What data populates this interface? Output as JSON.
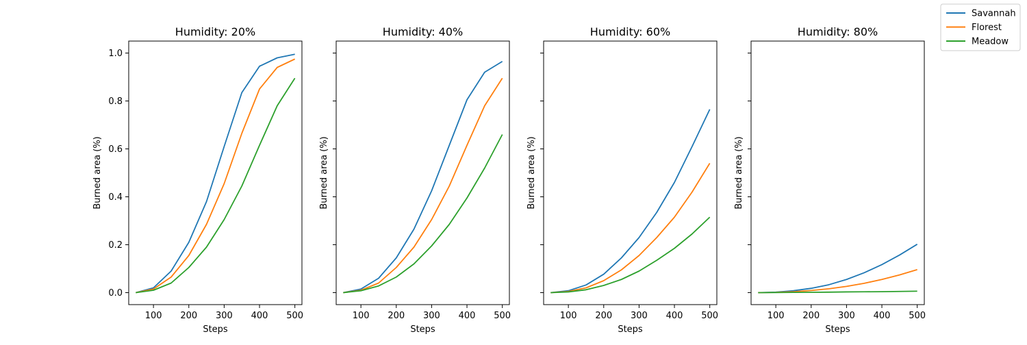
{
  "chart_data": {
    "type": "line",
    "layout": "1x4 subplots, shared y-axis",
    "legend": {
      "placement": "outside top-right",
      "entries": [
        "Savannah",
        "Florest",
        "Meadow"
      ]
    },
    "colors": {
      "Savannah": "#1f77b4",
      "Florest": "#ff7f0e",
      "Meadow": "#2ca02c"
    },
    "grid": false,
    "xlim": [
      30,
      520
    ],
    "ylim": [
      -0.05,
      1.05
    ],
    "x_ticks": [
      100,
      200,
      300,
      400,
      500
    ],
    "y_ticks": [
      0.0,
      0.2,
      0.4,
      0.6,
      0.8,
      1.0
    ],
    "y_tick_labels": [
      "0.0",
      "0.2",
      "0.4",
      "0.6",
      "0.8",
      "1.0"
    ],
    "x": [
      50,
      100,
      150,
      200,
      250,
      300,
      350,
      400,
      450,
      500
    ],
    "panels": [
      {
        "title": "Humidity: 20%",
        "xlabel": "Steps",
        "ylabel": "Burned area (%)",
        "series": [
          {
            "name": "Savannah",
            "values": [
              0.0,
              0.02,
              0.09,
              0.21,
              0.38,
              0.61,
              0.835,
              0.945,
              0.98,
              0.995
            ]
          },
          {
            "name": "Florest",
            "values": [
              0.0,
              0.015,
              0.065,
              0.155,
              0.285,
              0.455,
              0.665,
              0.85,
              0.94,
              0.975
            ]
          },
          {
            "name": "Meadow",
            "values": [
              0.0,
              0.01,
              0.04,
              0.105,
              0.19,
              0.305,
              0.445,
              0.615,
              0.78,
              0.895
            ]
          }
        ]
      },
      {
        "title": "Humidity: 40%",
        "xlabel": "Steps",
        "ylabel": "Burned area (%)",
        "series": [
          {
            "name": "Savannah",
            "values": [
              0.0,
              0.015,
              0.06,
              0.145,
              0.265,
              0.425,
              0.615,
              0.805,
              0.92,
              0.965
            ]
          },
          {
            "name": "Florest",
            "values": [
              0.0,
              0.01,
              0.04,
              0.105,
              0.19,
              0.305,
              0.445,
              0.615,
              0.78,
              0.895
            ]
          },
          {
            "name": "Meadow",
            "values": [
              0.0,
              0.008,
              0.028,
              0.065,
              0.12,
              0.195,
              0.285,
              0.395,
              0.52,
              0.66
            ]
          }
        ]
      },
      {
        "title": "Humidity: 60%",
        "xlabel": "Steps",
        "ylabel": "Burned area (%)",
        "series": [
          {
            "name": "Savannah",
            "values": [
              0.0,
              0.008,
              0.032,
              0.077,
              0.145,
              0.23,
              0.335,
              0.46,
              0.61,
              0.765
            ]
          },
          {
            "name": "Florest",
            "values": [
              0.0,
              0.005,
              0.02,
              0.05,
              0.095,
              0.155,
              0.23,
              0.315,
              0.42,
              0.54
            ]
          },
          {
            "name": "Meadow",
            "values": [
              0.0,
              0.003,
              0.012,
              0.03,
              0.055,
              0.09,
              0.135,
              0.185,
              0.245,
              0.315
            ]
          }
        ]
      },
      {
        "title": "Humidity: 80%",
        "xlabel": "Steps",
        "ylabel": "Burned area (%)",
        "series": [
          {
            "name": "Savannah",
            "values": [
              0.0,
              0.002,
              0.008,
              0.018,
              0.033,
              0.055,
              0.083,
              0.117,
              0.157,
              0.202
            ]
          },
          {
            "name": "Florest",
            "values": [
              0.0,
              0.001,
              0.004,
              0.009,
              0.016,
              0.026,
              0.039,
              0.055,
              0.074,
              0.096
            ]
          },
          {
            "name": "Meadow",
            "values": [
              0.0,
              0.0005,
              0.001,
              0.0015,
              0.002,
              0.003,
              0.0035,
              0.004,
              0.005,
              0.006
            ]
          }
        ]
      }
    ]
  }
}
